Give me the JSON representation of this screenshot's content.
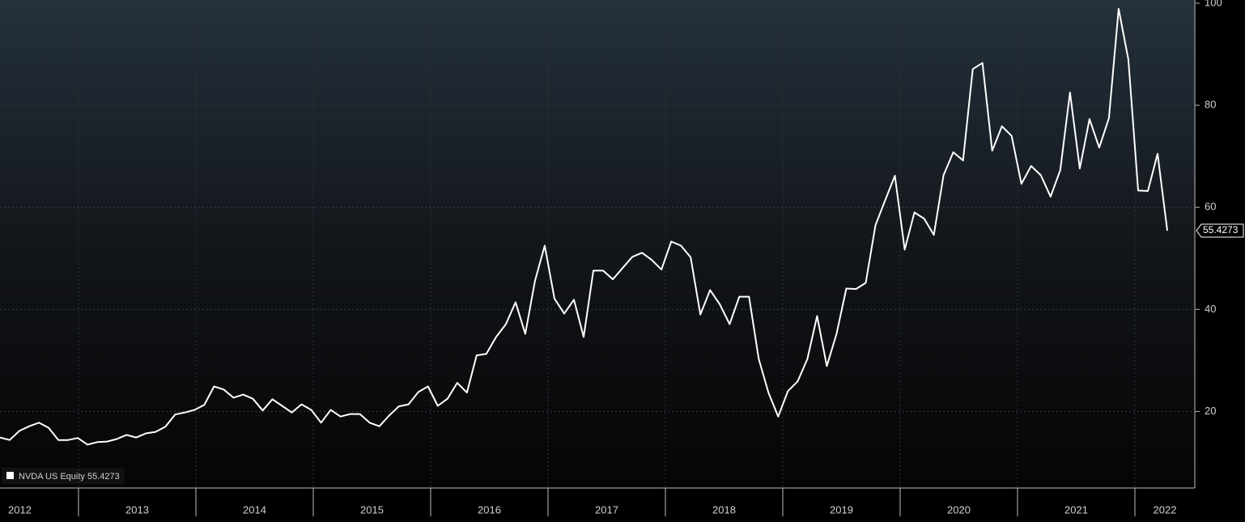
{
  "chart_data": {
    "type": "line",
    "x_labels": [
      "2012",
      "2013",
      "2014",
      "2015",
      "2016",
      "2017",
      "2018",
      "2019",
      "2020",
      "2021",
      "2022"
    ],
    "series": [
      {
        "name": "NVDA US Equity",
        "color": "#ffffff",
        "values": [
          14.9,
          14.4,
          16.2,
          17.1,
          17.8,
          16.8,
          14.4,
          14.4,
          14.8,
          13.5,
          14.0,
          14.1,
          14.6,
          15.4,
          14.9,
          15.7,
          16.0,
          17.0,
          19.4,
          19.8,
          20.3,
          21.3,
          24.9,
          24.3,
          22.7,
          23.3,
          22.5,
          20.2,
          22.4,
          21.1,
          19.8,
          21.4,
          20.3,
          17.8,
          20.3,
          19.0,
          19.5,
          19.5,
          17.8,
          17.1,
          19.2,
          21.0,
          21.4,
          23.8,
          24.9,
          21.1,
          22.5,
          25.6,
          23.7,
          31.0,
          31.3,
          34.6,
          37.1,
          41.4,
          35.2,
          45.6,
          52.5,
          42.1,
          39.2,
          41.9,
          34.6,
          47.6,
          47.6,
          45.9,
          48.1,
          50.3,
          51.1,
          49.7,
          47.8,
          53.3,
          52.5,
          50.2,
          39.0,
          43.8,
          41.0,
          37.1,
          42.5,
          42.5,
          30.3,
          23.7,
          19.0,
          24.0,
          25.9,
          30.3,
          38.7,
          28.9,
          35.2,
          44.1,
          44.0,
          45.2,
          56.5,
          61.4,
          66.2,
          51.7,
          59.0,
          57.8,
          54.6,
          66.3,
          70.8,
          69.2,
          87.1,
          88.3,
          71.1,
          75.9,
          74.0,
          64.6,
          68.1,
          66.3,
          62.1,
          67.3,
          82.5,
          67.6,
          77.3,
          71.7,
          77.5,
          98.9,
          89.0,
          63.3,
          63.2,
          70.5,
          55.4273
        ]
      }
    ],
    "ylim": [
      5,
      100
    ],
    "yticks": [
      20,
      40,
      60,
      80,
      100
    ],
    "grid": true
  }
}
